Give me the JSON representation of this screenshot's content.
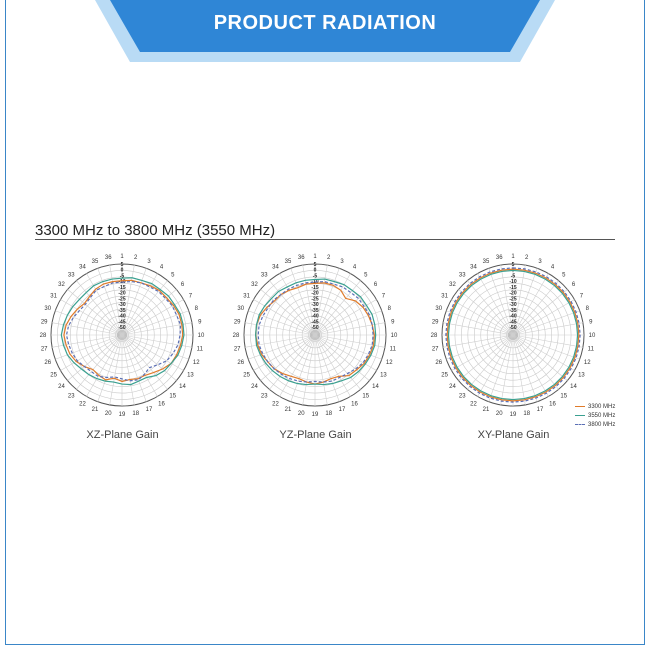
{
  "banner": {
    "title": "PRODUCT RADIATION",
    "color": "#2f86d6"
  },
  "section": {
    "heading": "3300 MHz to 3800 MHz (3550 MHz)"
  },
  "chart_data": [
    {
      "type": "polar",
      "title": "XZ-Plane Gain",
      "angular_labels": [
        "1",
        "2",
        "3",
        "4",
        "5",
        "6",
        "7",
        "8",
        "9",
        "10",
        "11",
        "12",
        "13",
        "14",
        "15",
        "16",
        "17",
        "18",
        "19",
        "20",
        "21",
        "22",
        "23",
        "24",
        "25",
        "26",
        "27",
        "28",
        "29",
        "30",
        "31",
        "32",
        "33",
        "34",
        "35",
        "36"
      ],
      "radial_labels": [
        "5",
        "0",
        "-5",
        "-10",
        "-15",
        "-20",
        "-25",
        "-30",
        "-35",
        "-40",
        "-45",
        "-50"
      ],
      "rlim": [
        -50,
        5
      ],
      "series": [
        {
          "name": "3300 MHz",
          "color": "#e07b2a",
          "dash": "none",
          "values": [
            -8,
            -7,
            -7,
            -6,
            -5,
            -5,
            -4,
            -3,
            -3,
            -3,
            -4,
            -5,
            -6,
            -9,
            -12,
            -14,
            -14,
            -15,
            -14,
            -16,
            -13,
            -14,
            -15,
            -12,
            -9,
            -7,
            -6,
            -5,
            -6,
            -8,
            -10,
            -12,
            -11,
            -9,
            -8,
            -8
          ]
        },
        {
          "name": "3550 MHz",
          "color": "#3aa090",
          "dash": "none",
          "values": [
            -6,
            -5,
            -5,
            -4,
            -4,
            -3,
            -3,
            -2,
            -2,
            -2,
            -3,
            -4,
            -6,
            -7,
            -9,
            -12,
            -12,
            -11,
            -12,
            -13,
            -12,
            -11,
            -10,
            -9,
            -7,
            -5,
            -4,
            -3,
            -4,
            -5,
            -6,
            -7,
            -7,
            -6,
            -6,
            -6
          ]
        },
        {
          "name": "3800 MHz",
          "color": "#5b6fb5",
          "dash": "3,2",
          "values": [
            -9,
            -8,
            -7,
            -7,
            -6,
            -6,
            -5,
            -5,
            -4,
            -5,
            -6,
            -8,
            -10,
            -14,
            -17,
            -15,
            -13,
            -14,
            -16,
            -17,
            -15,
            -13,
            -13,
            -12,
            -10,
            -9,
            -8,
            -7,
            -8,
            -10,
            -12,
            -13,
            -12,
            -10,
            -10,
            -9
          ]
        }
      ]
    },
    {
      "type": "polar",
      "title": "YZ-Plane Gain",
      "angular_labels": [
        "1",
        "2",
        "3",
        "4",
        "5",
        "6",
        "7",
        "8",
        "9",
        "10",
        "11",
        "12",
        "13",
        "14",
        "15",
        "16",
        "17",
        "18",
        "19",
        "20",
        "21",
        "22",
        "23",
        "24",
        "25",
        "26",
        "27",
        "28",
        "29",
        "30",
        "31",
        "32",
        "33",
        "34",
        "35",
        "36"
      ],
      "radial_labels": [
        "5",
        "0",
        "-5",
        "-10",
        "-15",
        "-20",
        "-25",
        "-30",
        "-35",
        "-40",
        "-45",
        "-50"
      ],
      "rlim": [
        -50,
        5
      ],
      "series": [
        {
          "name": "3300 MHz",
          "color": "#e07b2a",
          "dash": "none",
          "values": [
            -10,
            -9,
            -9,
            -10,
            -13,
            -9,
            -7,
            -6,
            -5,
            -4,
            -4,
            -5,
            -6,
            -8,
            -9,
            -13,
            -14,
            -13,
            -12,
            -13,
            -14,
            -13,
            -11,
            -9,
            -8,
            -6,
            -5,
            -4,
            -4,
            -5,
            -7,
            -9,
            -9,
            -10,
            -11,
            -10
          ]
        },
        {
          "name": "3550 MHz",
          "color": "#3aa090",
          "dash": "none",
          "values": [
            -7,
            -6,
            -6,
            -5,
            -5,
            -4,
            -4,
            -3,
            -3,
            -3,
            -3,
            -4,
            -5,
            -6,
            -7,
            -9,
            -10,
            -11,
            -12,
            -11,
            -10,
            -9,
            -8,
            -7,
            -6,
            -5,
            -4,
            -4,
            -4,
            -4,
            -5,
            -6,
            -6,
            -7,
            -7,
            -7
          ]
        },
        {
          "name": "3800 MHz",
          "color": "#5b6fb5",
          "dash": "3,2",
          "values": [
            -9,
            -8,
            -8,
            -7,
            -7,
            -6,
            -6,
            -5,
            -5,
            -5,
            -5,
            -6,
            -7,
            -9,
            -11,
            -12,
            -12,
            -13,
            -14,
            -13,
            -12,
            -11,
            -10,
            -9,
            -8,
            -7,
            -6,
            -6,
            -6,
            -7,
            -8,
            -8,
            -9,
            -9,
            -9,
            -9
          ]
        }
      ]
    },
    {
      "type": "polar",
      "title": "XY-Plane Gain",
      "angular_labels": [
        "1",
        "2",
        "3",
        "4",
        "5",
        "6",
        "7",
        "8",
        "9",
        "10",
        "11",
        "12",
        "13",
        "14",
        "15",
        "16",
        "17",
        "18",
        "19",
        "20",
        "21",
        "22",
        "23",
        "24",
        "25",
        "26",
        "27",
        "28",
        "29",
        "30",
        "31",
        "32",
        "33",
        "34",
        "35",
        "36"
      ],
      "radial_labels": [
        "5",
        "0",
        "-5",
        "-10",
        "-15",
        "-20",
        "-25",
        "-30",
        "-35",
        "-40",
        "-45",
        "-50"
      ],
      "rlim": [
        -50,
        5
      ],
      "series": [
        {
          "name": "3300 MHz",
          "color": "#e07b2a",
          "dash": "none",
          "values": [
            1,
            1,
            1,
            1,
            1,
            1,
            1,
            1,
            1,
            1,
            1,
            1,
            1,
            1,
            1,
            1,
            1,
            1,
            1,
            1,
            1,
            1,
            1,
            1,
            1,
            1,
            1,
            1,
            1,
            1,
            1,
            1,
            1,
            1,
            1,
            1
          ]
        },
        {
          "name": "3550 MHz",
          "color": "#3aa090",
          "dash": "none",
          "values": [
            0,
            0,
            0,
            0,
            0,
            0,
            0,
            0,
            0,
            0,
            0,
            0,
            0,
            0,
            0,
            0,
            0,
            0,
            0,
            0,
            0,
            0,
            0,
            0,
            0,
            0,
            0,
            0,
            0,
            0,
            0,
            0,
            0,
            0,
            0,
            0
          ]
        },
        {
          "name": "3800 MHz",
          "color": "#5b6fb5",
          "dash": "3,2",
          "values": [
            2,
            2,
            2,
            2,
            2,
            2,
            2,
            2,
            2,
            2,
            2,
            2,
            2,
            2,
            2,
            2,
            2,
            2,
            2,
            2,
            2,
            2,
            2,
            2,
            2,
            2,
            2,
            2,
            2,
            2,
            2,
            2,
            2,
            2,
            2,
            2
          ]
        }
      ],
      "legend": [
        "3300 MHz",
        "3550 MHz",
        "3800 MHz"
      ]
    }
  ]
}
